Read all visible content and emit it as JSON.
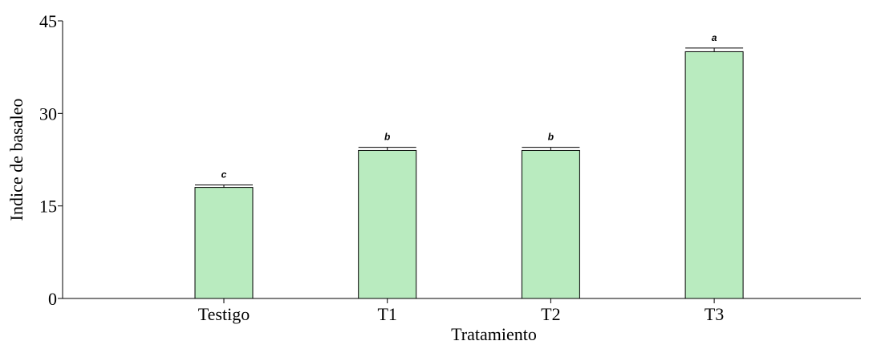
{
  "chart_data": {
    "type": "bar",
    "title": "",
    "xlabel": "Tratamiento",
    "ylabel": "Indice de basaleo",
    "categories": [
      "Testigo",
      "T1",
      "T2",
      "T3"
    ],
    "values": [
      18,
      24,
      24,
      40
    ],
    "errors": [
      0.4,
      0.5,
      0.5,
      0.6
    ],
    "significance_labels": [
      "c",
      "b",
      "b",
      "a"
    ],
    "ylim": [
      0,
      45
    ],
    "yticks": [
      "0",
      "15",
      "30",
      "45"
    ],
    "grid": false,
    "legend": "none",
    "colors": {
      "bar_fill": "#b9ebbf",
      "bar_stroke": "#000000",
      "axis": "#000000"
    }
  }
}
